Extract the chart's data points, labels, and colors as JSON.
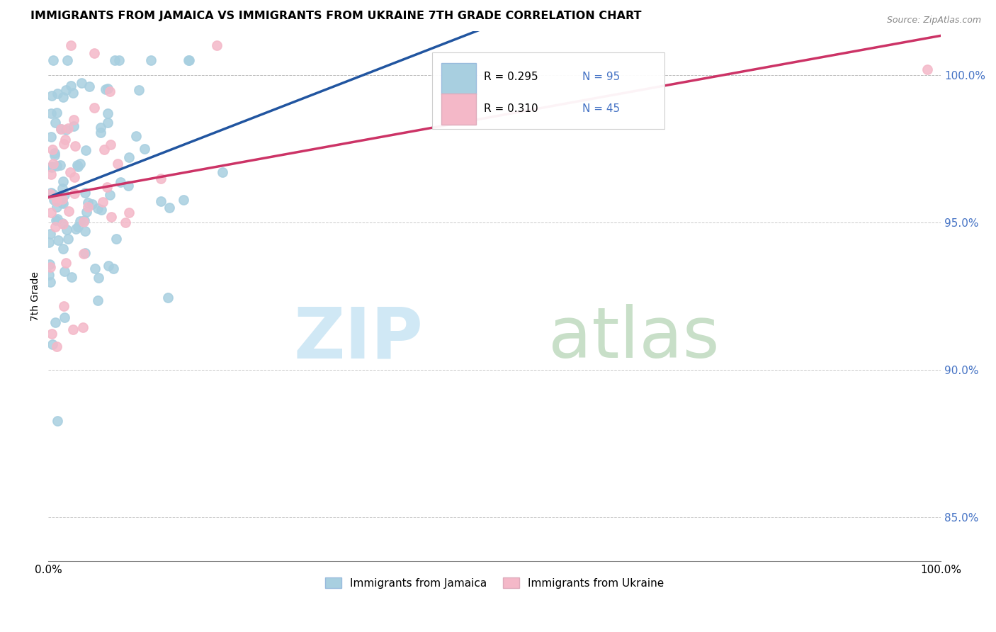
{
  "title": "IMMIGRANTS FROM JAMAICA VS IMMIGRANTS FROM UKRAINE 7TH GRADE CORRELATION CHART",
  "source": "Source: ZipAtlas.com",
  "ylabel": "7th Grade",
  "xlim": [
    0.0,
    100.0
  ],
  "ylim": [
    83.5,
    101.5
  ],
  "yticks": [
    85.0,
    90.0,
    95.0,
    100.0
  ],
  "xticks": [
    0.0,
    100.0
  ],
  "color_jamaica": "#a8cfe0",
  "color_ukraine": "#f4b8c8",
  "trendline_color_jamaica": "#2155a0",
  "trendline_color_ukraine": "#cc3366",
  "watermark_zip_color": "#d0e8f5",
  "watermark_atlas_color": "#c8dfc8",
  "background_color": "#ffffff",
  "ytick_color": "#4472c4",
  "legend_r1": "R = 0.295",
  "legend_n1": "N = 95",
  "legend_r2": "R = 0.310",
  "legend_n2": "N = 45"
}
